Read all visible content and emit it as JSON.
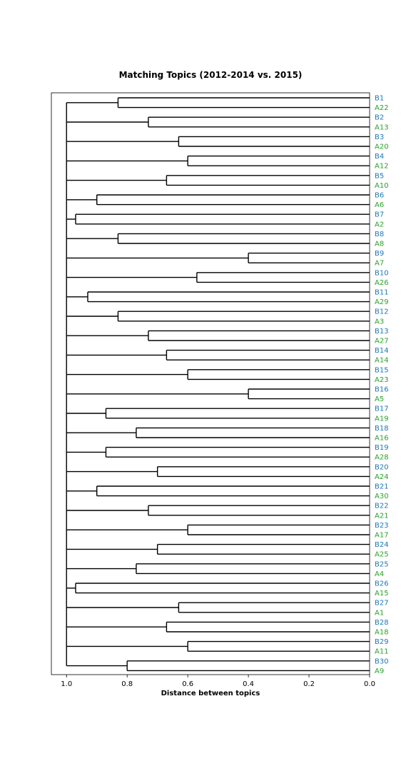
{
  "chart_data": {
    "type": "dendrogram",
    "title": "Matching Topics (2012-2014 vs. 2015)",
    "xlabel": "Distance between topics",
    "xlim": [
      1.05,
      0.0
    ],
    "x_ticks": [
      "1.0",
      "0.8",
      "0.6",
      "0.4",
      "0.2",
      "0.0"
    ],
    "x_tick_values": [
      1.0,
      0.8,
      0.6,
      0.4,
      0.2,
      0.0
    ],
    "root_distance": 1.0,
    "colors": {
      "B": "#1f77b4",
      "A": "#2ca02c",
      "line": "#000000"
    },
    "pairs": [
      {
        "b": "B1",
        "a": "A22",
        "distance": 0.83
      },
      {
        "b": "B2",
        "a": "A13",
        "distance": 0.73
      },
      {
        "b": "B3",
        "a": "A20",
        "distance": 0.63
      },
      {
        "b": "B4",
        "a": "A12",
        "distance": 0.6
      },
      {
        "b": "B5",
        "a": "A10",
        "distance": 0.67
      },
      {
        "b": "B6",
        "a": "A6",
        "distance": 0.9
      },
      {
        "b": "B7",
        "a": "A2",
        "distance": 0.97
      },
      {
        "b": "B8",
        "a": "A8",
        "distance": 0.83
      },
      {
        "b": "B9",
        "a": "A7",
        "distance": 0.4
      },
      {
        "b": "B10",
        "a": "A26",
        "distance": 0.57
      },
      {
        "b": "B11",
        "a": "A29",
        "distance": 0.93
      },
      {
        "b": "B12",
        "a": "A3",
        "distance": 0.83
      },
      {
        "b": "B13",
        "a": "A27",
        "distance": 0.73
      },
      {
        "b": "B14",
        "a": "A14",
        "distance": 0.67
      },
      {
        "b": "B15",
        "a": "A23",
        "distance": 0.6
      },
      {
        "b": "B16",
        "a": "A5",
        "distance": 0.4
      },
      {
        "b": "B17",
        "a": "A19",
        "distance": 0.87
      },
      {
        "b": "B18",
        "a": "A16",
        "distance": 0.77
      },
      {
        "b": "B19",
        "a": "A28",
        "distance": 0.87
      },
      {
        "b": "B20",
        "a": "A24",
        "distance": 0.7
      },
      {
        "b": "B21",
        "a": "A30",
        "distance": 0.9
      },
      {
        "b": "B22",
        "a": "A21",
        "distance": 0.73
      },
      {
        "b": "B23",
        "a": "A17",
        "distance": 0.6
      },
      {
        "b": "B24",
        "a": "A25",
        "distance": 0.7
      },
      {
        "b": "B25",
        "a": "A4",
        "distance": 0.77
      },
      {
        "b": "B26",
        "a": "A15",
        "distance": 0.97
      },
      {
        "b": "B27",
        "a": "A1",
        "distance": 0.63
      },
      {
        "b": "B28",
        "a": "A18",
        "distance": 0.67
      },
      {
        "b": "B29",
        "a": "A11",
        "distance": 0.6
      },
      {
        "b": "B30",
        "a": "A9",
        "distance": 0.8
      }
    ]
  }
}
